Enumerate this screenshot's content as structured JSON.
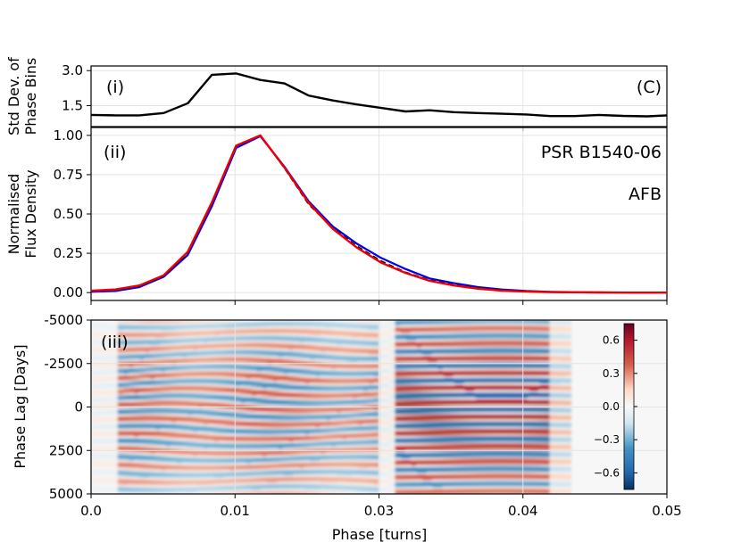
{
  "chart_data": [
    {
      "panel": "(i)",
      "type": "line",
      "annotation": "(C)",
      "ylabel_line1": "Std Dev. of",
      "ylabel_line2": "Phase Bins",
      "ylim": [
        0.6,
        3.2
      ],
      "yticks": [
        {
          "v": 1.5,
          "label": "1.5"
        },
        {
          "v": 3.0,
          "label": "3.0"
        }
      ],
      "x": [
        0.0,
        0.0021,
        0.0042,
        0.0063,
        0.0084,
        0.0105,
        0.0126,
        0.0147,
        0.0168,
        0.0189,
        0.021,
        0.0231,
        0.0252,
        0.0273,
        0.0294,
        0.0315,
        0.0336,
        0.0357,
        0.0378,
        0.0399,
        0.042,
        0.0441,
        0.0462,
        0.0483,
        0.05
      ],
      "values": [
        1.1,
        1.08,
        1.08,
        1.18,
        1.6,
        2.82,
        2.88,
        2.6,
        2.45,
        1.93,
        1.72,
        1.55,
        1.4,
        1.25,
        1.3,
        1.22,
        1.18,
        1.15,
        1.12,
        1.05,
        1.05,
        1.1,
        1.06,
        1.04,
        1.08
      ]
    },
    {
      "panel": "(ii)",
      "type": "line",
      "title": "PSR B1540-06",
      "annotation": "AFB",
      "ylabel_line1": "Normalised",
      "ylabel_line2": "Flux Density",
      "ylim": [
        -0.05,
        1.05
      ],
      "yticks": [
        {
          "v": 0.0,
          "label": "0.00"
        },
        {
          "v": 0.25,
          "label": "0.25"
        },
        {
          "v": 0.5,
          "label": "0.50"
        },
        {
          "v": 0.75,
          "label": "0.75"
        },
        {
          "v": 1.0,
          "label": "1.00"
        }
      ],
      "x": [
        0.0,
        0.0021,
        0.0042,
        0.0063,
        0.0084,
        0.0105,
        0.0126,
        0.0147,
        0.0168,
        0.0189,
        0.021,
        0.0231,
        0.0252,
        0.0273,
        0.0294,
        0.0315,
        0.0336,
        0.0357,
        0.0378,
        0.0399,
        0.042,
        0.0441,
        0.0462,
        0.0483,
        0.05
      ],
      "series": [
        {
          "name": "blue",
          "color": "#0000ee",
          "width": 2.2,
          "dash": "",
          "values": [
            0.005,
            0.01,
            0.035,
            0.1,
            0.24,
            0.55,
            0.92,
            0.995,
            0.8,
            0.58,
            0.42,
            0.31,
            0.22,
            0.15,
            0.09,
            0.06,
            0.035,
            0.02,
            0.01,
            0.005,
            0.002,
            0.001,
            0.0,
            0.0,
            0.0
          ]
        },
        {
          "name": "black",
          "color": "#000000",
          "width": 1.6,
          "dash": "6,4",
          "values": [
            0.01,
            0.015,
            0.04,
            0.105,
            0.25,
            0.57,
            0.93,
            1.0,
            0.79,
            0.56,
            0.41,
            0.295,
            0.2,
            0.13,
            0.08,
            0.05,
            0.03,
            0.015,
            0.008,
            0.004,
            0.002,
            0.001,
            0.0,
            0.0,
            0.0
          ]
        },
        {
          "name": "red",
          "color": "#ee0000",
          "width": 2.4,
          "dash": "",
          "values": [
            0.012,
            0.02,
            0.045,
            0.11,
            0.26,
            0.575,
            0.935,
            1.0,
            0.795,
            0.57,
            0.405,
            0.285,
            0.19,
            0.125,
            0.075,
            0.045,
            0.025,
            0.012,
            0.006,
            0.003,
            0.002,
            0.001,
            0.0,
            0.0,
            0.0
          ]
        }
      ]
    },
    {
      "panel": "(iii)",
      "type": "heatmap",
      "ylabel": "Phase Lag [Days]",
      "xlabel": "Phase [turns]",
      "ylim": [
        5000,
        -5000
      ],
      "yticks": [
        {
          "v": -5000,
          "label": "-5000"
        },
        {
          "v": -2500,
          "label": "-2500"
        },
        {
          "v": 0,
          "label": "0"
        },
        {
          "v": 2500,
          "label": "2500"
        },
        {
          "v": 5000,
          "label": "5000"
        }
      ],
      "xlim": [
        0.0,
        0.05
      ],
      "xticks": [
        {
          "v": 0.0,
          "label": "0.0"
        },
        {
          "v": 0.0125,
          "label": "0.01"
        },
        {
          "v": 0.025,
          "label": "0.03"
        },
        {
          "v": 0.0375,
          "label": "0.04"
        },
        {
          "v": 0.05,
          "label": "0.05"
        }
      ],
      "colorbar_min": -0.75,
      "colorbar_max": 0.75,
      "colorbar_ticks": [
        {
          "v": 0.6,
          "label": "0.6"
        },
        {
          "v": 0.3,
          "label": "0.3"
        },
        {
          "v": 0.0,
          "label": "0.0"
        },
        {
          "v": -0.3,
          "label": "−0.3"
        },
        {
          "v": -0.6,
          "label": "−0.6"
        }
      ]
    }
  ]
}
